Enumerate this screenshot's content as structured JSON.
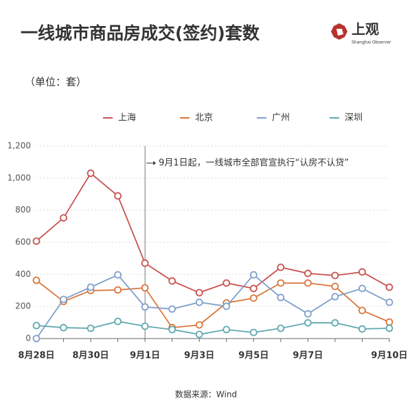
{
  "chart_data": {
    "type": "line",
    "title": "一线城市商品房成交(签约)套数",
    "subtitle": "（单位：套）",
    "source": "数据来源：Wind",
    "logo": {
      "name": "上观",
      "english": "Shanghai Observer"
    },
    "annotation": {
      "text": "9月1日起，一线城市全部官宣执行“认房不认贷”",
      "x": "9月1日"
    },
    "categories": [
      "8月28日",
      null,
      "8月30日",
      null,
      "9月1日",
      null,
      "9月3日",
      null,
      "9月5日",
      null,
      "9月7日",
      null,
      null,
      "9月10日"
    ],
    "series": [
      {
        "name": "上海",
        "color": "#c9524f",
        "values": [
          607,
          752,
          1030,
          889,
          470,
          359,
          286,
          346,
          312,
          444,
          406,
          393,
          415,
          320
        ]
      },
      {
        "name": "北京",
        "color": "#d9763a",
        "values": [
          363,
          231,
          299,
          303,
          316,
          68,
          85,
          222,
          252,
          346,
          346,
          325,
          175,
          103
        ]
      },
      {
        "name": "广州",
        "color": "#7f9fcb",
        "values": [
          0,
          244,
          320,
          397,
          197,
          184,
          226,
          201,
          397,
          256,
          154,
          261,
          312,
          226
        ]
      },
      {
        "name": "深圳",
        "color": "#5fa9b0",
        "values": [
          81,
          68,
          64,
          107,
          77,
          56,
          26,
          56,
          38,
          64,
          98,
          98,
          60,
          64
        ]
      }
    ],
    "ylim": [
      0,
      1200
    ],
    "yticks": [
      0,
      200,
      400,
      600,
      800,
      {
        "value": 1000,
        "label": "1,000"
      },
      {
        "value": 1200,
        "label": "1,200"
      }
    ],
    "grid": true,
    "legend": "top"
  }
}
